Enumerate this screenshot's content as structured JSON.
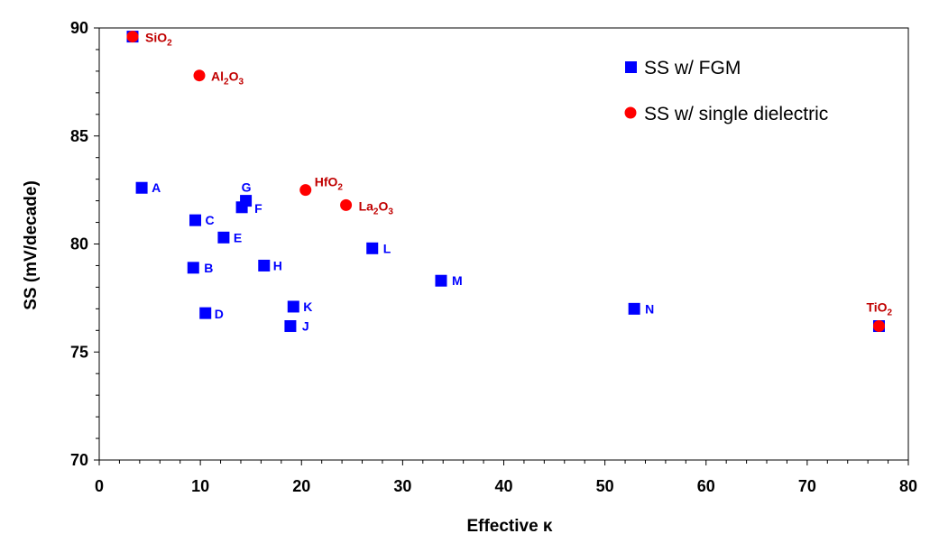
{
  "chart_data": {
    "type": "scatter",
    "xlabel": "Effective κ",
    "ylabel": "SS (mV/decade)",
    "xlim": [
      0,
      80
    ],
    "ylim": [
      70,
      90
    ],
    "x_ticks": [
      "0",
      "10",
      "20",
      "30",
      "40",
      "50",
      "60",
      "70",
      "80"
    ],
    "y_ticks": [
      "70",
      "75",
      "80",
      "85",
      "90"
    ],
    "grid": false,
    "legend_position": "top-right",
    "series": [
      {
        "name": "SS w/ FGM",
        "marker": "square",
        "color": "#0000FF",
        "points": [
          {
            "label": "A",
            "x": 4.2,
            "y": 82.6
          },
          {
            "label": "B",
            "x": 9.3,
            "y": 78.9
          },
          {
            "label": "C",
            "x": 9.5,
            "y": 81.1
          },
          {
            "label": "D",
            "x": 10.5,
            "y": 76.8
          },
          {
            "label": "E",
            "x": 12.3,
            "y": 80.3
          },
          {
            "label": "F",
            "x": 14.1,
            "y": 81.7
          },
          {
            "label": "G",
            "x": 14.5,
            "y": 82.0
          },
          {
            "label": "H",
            "x": 16.3,
            "y": 79.0
          },
          {
            "label": "J",
            "x": 18.9,
            "y": 76.2
          },
          {
            "label": "K",
            "x": 19.2,
            "y": 77.1
          },
          {
            "label": "L",
            "x": 27.0,
            "y": 79.8
          },
          {
            "label": "M",
            "x": 33.8,
            "y": 78.3
          },
          {
            "label": "N",
            "x": 52.9,
            "y": 77.0
          },
          {
            "label": "",
            "x": 3.3,
            "y": 89.6
          },
          {
            "label": "",
            "x": 77.1,
            "y": 76.2
          }
        ]
      },
      {
        "name": "SS w/ single dielectric",
        "marker": "circle",
        "color": "#FF0000",
        "points": [
          {
            "formula": [
              "SiO",
              "2",
              ""
            ],
            "x": 3.3,
            "y": 89.6
          },
          {
            "formula": [
              "Al",
              "2",
              "O",
              "3"
            ],
            "x": 9.9,
            "y": 87.8
          },
          {
            "formula": [
              "HfO",
              "2",
              ""
            ],
            "x": 20.4,
            "y": 82.5
          },
          {
            "formula": [
              "La",
              "2",
              "O",
              "3"
            ],
            "x": 24.4,
            "y": 81.8
          },
          {
            "formula": [
              "TiO",
              "2",
              ""
            ],
            "x": 77.1,
            "y": 76.2
          }
        ]
      }
    ]
  }
}
